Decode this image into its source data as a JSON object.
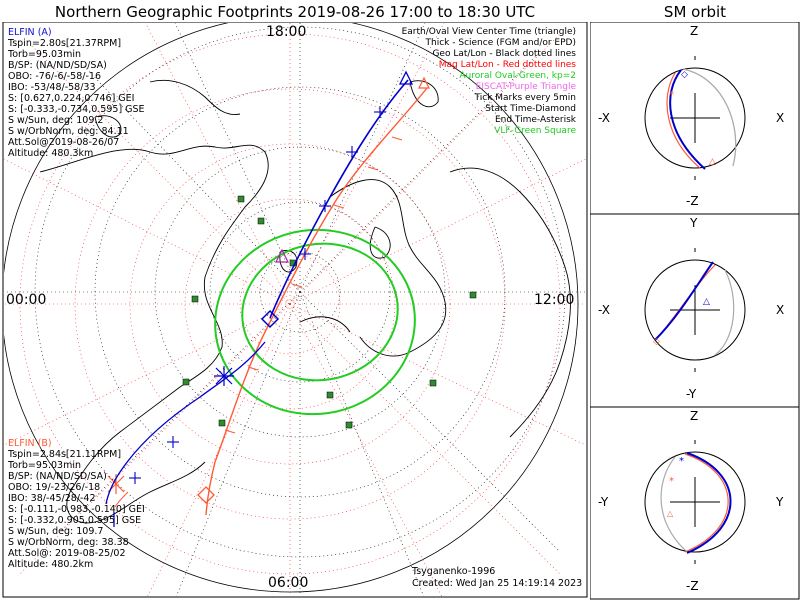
{
  "title": "Northern Geographic Footprints 2019-08-26 17:00 to 18:30 UTC",
  "sm_title": "SM orbit",
  "mlt_labels": {
    "top": "18:00",
    "left": "00:00",
    "right": "12:00",
    "bottom": "06:00"
  },
  "elfin_a": {
    "label": "ELFIN (A)",
    "lines": [
      "Tspin=2.80s[21.37RPM]",
      "Torb=95.03min",
      "B/SP: (NA/ND/SD/SA)",
      "OBO: -76/-6/-58/-16",
      "IBO: -53/48/-58/33",
      "S: [0.627,0.224,0.746] GEI",
      "S: [-0.333,-0.734,0.595] GSE",
      "S w/Sun, deg: 109.2",
      "S w/OrbNorm, deg: 84.11",
      "Att.Sol@2019-08-26/07",
      "Altitude: 480.3km"
    ],
    "color": "#0000cc"
  },
  "elfin_b": {
    "label": "ELFIN (B)",
    "lines": [
      "Tspin=2.84s[21.11RPM]",
      "Torb=95.03min",
      "B/SP: (NA/ND/SD/SA)",
      "OBO: 19/-23/26/-18",
      "IBO: 38/-45/28/-42",
      "S: [-0.111,-0.983,-0.140] GEI",
      "S: [-0.332,0.905,0.595] GSE",
      "S w/Sun, deg: 109.7",
      "S w/OrbNorm, deg: 38.38",
      "Att.Sol@: 2019-08-25/02",
      "Altitude: 480.2km"
    ],
    "color": "#ff5a36"
  },
  "legend": [
    {
      "text": "Earth/Oval View Center Time (triangle)",
      "color": "#000000"
    },
    {
      "text": "Thick - Science (FGM and/or EPD)",
      "color": "#000000"
    },
    {
      "text": "Geo Lat/Lon - Black dotted lines",
      "color": "#000000"
    },
    {
      "text": "Mag Lat/Lon - Red dotted lines",
      "color": "#ff0000"
    },
    {
      "text": "Auroral Oval-Green, kp=2",
      "color": "#22cc22"
    },
    {
      "text": "EISCAT-Purple Triangle",
      "color": "#ee66ee"
    },
    {
      "text": "Tick Marks every 5min",
      "color": "#000000"
    },
    {
      "text": "Start Time-Diamond",
      "color": "#000000"
    },
    {
      "text": "End Time-Asterisk",
      "color": "#000000"
    },
    {
      "text": "VLF-Green Square",
      "color": "#22cc22"
    }
  ],
  "footer": {
    "credit": "Tsyganenko-1996",
    "created": "Created: Wed Jan 25 14:19:14 2023"
  },
  "sm_panels": [
    {
      "top": "Z",
      "bottom": "-Z",
      "left": "-X",
      "right": "X"
    },
    {
      "top": "Y",
      "bottom": "-Y",
      "left": "-X",
      "right": "X"
    },
    {
      "top": "Z",
      "bottom": "-Z",
      "left": "-Y",
      "right": "Y"
    }
  ]
}
